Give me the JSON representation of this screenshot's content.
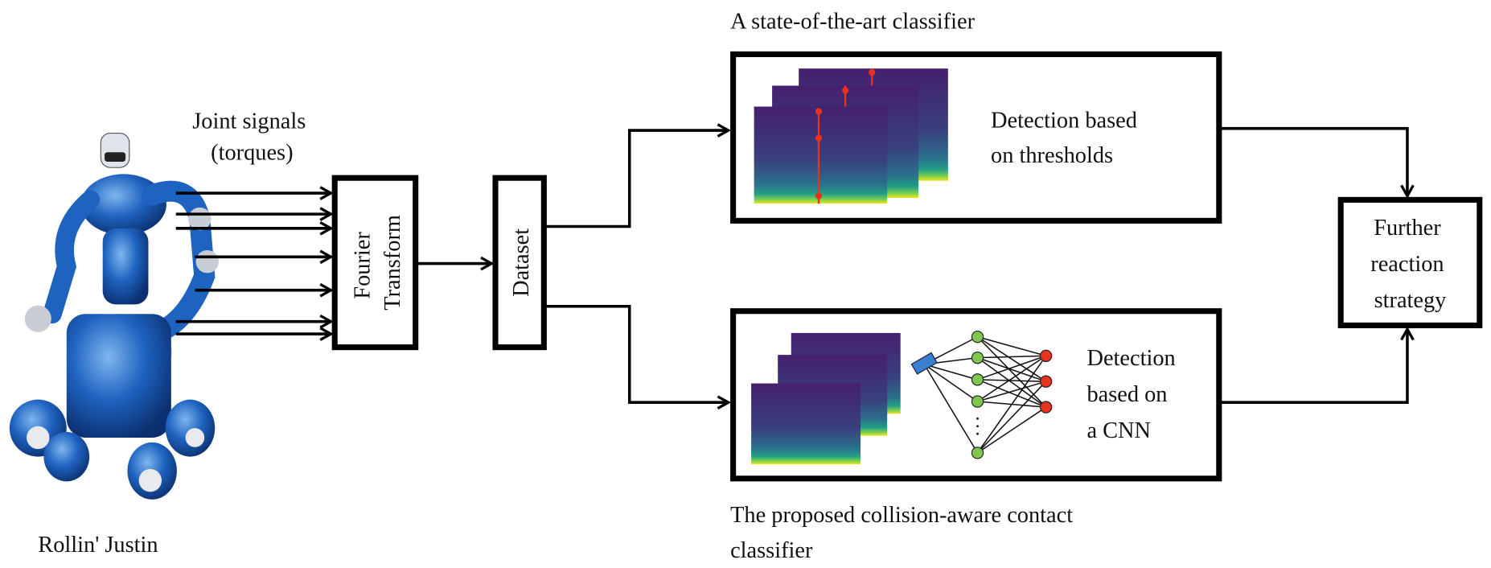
{
  "robot_label": "Rollin' Justin",
  "joint_signals_label": [
    "Joint signals",
    "(torques)"
  ],
  "fourier_box": [
    "Fourier",
    "Transform"
  ],
  "dataset_box": "Dataset",
  "top_branch": {
    "title": "A state-of-the-art classifier",
    "box_text": [
      "Detection based",
      "on thresholds"
    ]
  },
  "bottom_branch": {
    "title": [
      "The proposed collision-aware contact",
      "classifier"
    ],
    "box_text": [
      "Detection",
      "based on",
      "a CNN"
    ]
  },
  "output_box": [
    "Further",
    "reaction",
    "strategy"
  ]
}
